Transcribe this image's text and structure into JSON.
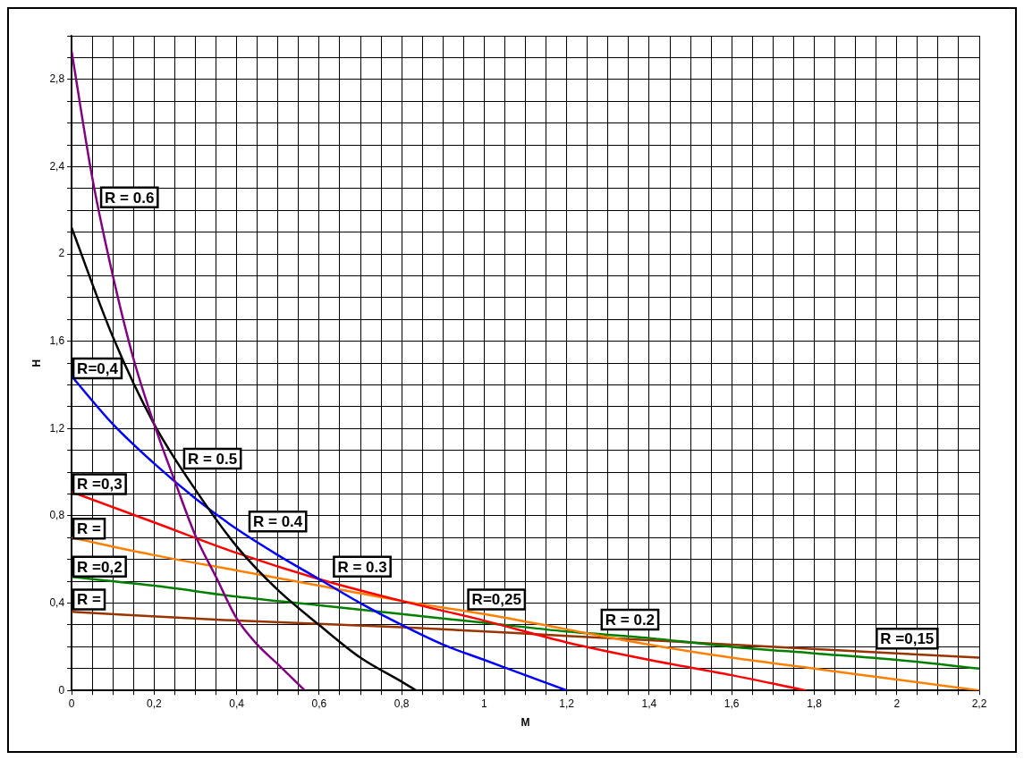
{
  "chart_data": {
    "type": "line",
    "xlabel": "M",
    "ylabel": "H",
    "xlim": [
      0,
      2.2
    ],
    "ylim": [
      0,
      3
    ],
    "xticks": [
      0,
      {
        "value": 0.05,
        "label": null
      },
      {
        "value": 0.1,
        "label": null
      },
      {
        "value": 0.15,
        "label": null
      },
      {
        "value": 0.2,
        "label": "0,2"
      },
      {
        "value": 0.25,
        "label": null
      },
      {
        "value": 0.3,
        "label": null
      },
      {
        "value": 0.35,
        "label": null
      },
      {
        "value": 0.4,
        "label": "0,4"
      },
      {
        "value": 0.45,
        "label": null
      },
      {
        "value": 0.5,
        "label": null
      },
      {
        "value": 0.55,
        "label": null
      },
      {
        "value": 0.6,
        "label": "0,6"
      },
      {
        "value": 0.65,
        "label": null
      },
      {
        "value": 0.7,
        "label": null
      },
      {
        "value": 0.75,
        "label": null
      },
      {
        "value": 0.8,
        "label": "0,8"
      },
      {
        "value": 0.85,
        "label": null
      },
      {
        "value": 0.9,
        "label": null
      },
      {
        "value": 0.95,
        "label": null
      },
      1,
      {
        "value": 1.05,
        "label": null
      },
      {
        "value": 1.1,
        "label": null
      },
      {
        "value": 1.15,
        "label": null
      },
      {
        "value": 1.2,
        "label": "1,2"
      },
      {
        "value": 1.25,
        "label": null
      },
      {
        "value": 1.3,
        "label": null
      },
      {
        "value": 1.35,
        "label": null
      },
      {
        "value": 1.4,
        "label": "1,4"
      },
      {
        "value": 1.45,
        "label": null
      },
      {
        "value": 1.5,
        "label": null
      },
      {
        "value": 1.55,
        "label": null
      },
      {
        "value": 1.6,
        "label": "1,6"
      },
      {
        "value": 1.65,
        "label": null
      },
      {
        "value": 1.7,
        "label": null
      },
      {
        "value": 1.75,
        "label": null
      },
      {
        "value": 1.8,
        "label": "1,8"
      },
      {
        "value": 1.85,
        "label": null
      },
      {
        "value": 1.9,
        "label": null
      },
      {
        "value": 1.95,
        "label": null
      },
      2,
      {
        "value": 2.05,
        "label": null
      },
      {
        "value": 2.1,
        "label": null
      },
      {
        "value": 2.15,
        "label": null
      },
      {
        "value": 2.2,
        "label": "2,2"
      }
    ],
    "yticks": [
      0,
      {
        "value": 0.1,
        "label": null
      },
      {
        "value": 0.2,
        "label": null
      },
      {
        "value": 0.3,
        "label": null
      },
      {
        "value": 0.4,
        "label": "0,4"
      },
      {
        "value": 0.5,
        "label": null
      },
      {
        "value": 0.6,
        "label": null
      },
      {
        "value": 0.7,
        "label": null
      },
      {
        "value": 0.8,
        "label": "0,8"
      },
      {
        "value": 0.9,
        "label": null
      },
      {
        "value": 1.0,
        "label": null
      },
      {
        "value": 1.1,
        "label": null
      },
      {
        "value": 1.2,
        "label": "1,2"
      },
      {
        "value": 1.3,
        "label": null
      },
      {
        "value": 1.4,
        "label": null
      },
      {
        "value": 1.5,
        "label": null
      },
      {
        "value": 1.6,
        "label": "1,6"
      },
      {
        "value": 1.7,
        "label": null
      },
      {
        "value": 1.8,
        "label": null
      },
      {
        "value": 1.9,
        "label": null
      },
      2,
      {
        "value": 2.1,
        "label": null
      },
      {
        "value": 2.2,
        "label": null
      },
      {
        "value": 2.3,
        "label": null
      },
      {
        "value": 2.4,
        "label": "2,4"
      },
      {
        "value": 2.5,
        "label": null
      },
      {
        "value": 2.6,
        "label": null
      },
      {
        "value": 2.7,
        "label": null
      },
      {
        "value": 2.8,
        "label": "2,8"
      },
      {
        "value": 2.9,
        "label": null
      },
      {
        "value": 3.0,
        "label": null
      }
    ],
    "grid": true,
    "legend": false,
    "marker": "none",
    "line_style": "solid",
    "series": [
      {
        "color": "#800080",
        "x": [
          0,
          0.05,
          0.1,
          0.15,
          0.2,
          0.25,
          0.3,
          0.35,
          0.4,
          0.45,
          0.5,
          0.565
        ],
        "values": [
          2.93,
          2.35,
          1.9,
          1.52,
          1.22,
          0.96,
          0.71,
          0.52,
          0.33,
          0.21,
          0.12,
          0
        ]
      },
      {
        "color": "#000000",
        "x": [
          0,
          0.1,
          0.2,
          0.3,
          0.4,
          0.5,
          0.6,
          0.7,
          0.8,
          0.835
        ],
        "values": [
          2.12,
          1.62,
          1.22,
          0.92,
          0.66,
          0.46,
          0.3,
          0.15,
          0.04,
          0
        ]
      },
      {
        "color": "#0000ff",
        "x": [
          0,
          0.1,
          0.2,
          0.3,
          0.4,
          0.5,
          0.6,
          0.7,
          0.8,
          0.9,
          1.0,
          1.1,
          1.2
        ],
        "values": [
          1.44,
          1.22,
          1.04,
          0.88,
          0.74,
          0.62,
          0.51,
          0.4,
          0.3,
          0.21,
          0.14,
          0.07,
          0
        ]
      },
      {
        "color": "#ff0000",
        "x": [
          0,
          0.2,
          0.4,
          0.6,
          0.8,
          1.0,
          1.2,
          1.4,
          1.6,
          1.78
        ],
        "values": [
          0.91,
          0.77,
          0.63,
          0.51,
          0.41,
          0.32,
          0.22,
          0.14,
          0.07,
          0
        ]
      },
      {
        "color": "#ff8000",
        "x": [
          0,
          0.2,
          0.4,
          0.6,
          0.8,
          1.0,
          1.2,
          1.4,
          1.6,
          1.8,
          2.0,
          2.2
        ],
        "values": [
          0.7,
          0.62,
          0.55,
          0.48,
          0.41,
          0.35,
          0.28,
          0.21,
          0.15,
          0.1,
          0.05,
          0
        ]
      },
      {
        "color": "#008000",
        "x": [
          0,
          0.2,
          0.4,
          0.6,
          0.8,
          1.0,
          1.2,
          1.4,
          1.6,
          1.8,
          2.0,
          2.2
        ],
        "values": [
          0.52,
          0.48,
          0.43,
          0.39,
          0.35,
          0.31,
          0.27,
          0.24,
          0.2,
          0.17,
          0.14,
          0.1
        ]
      },
      {
        "color": "#993300",
        "x": [
          0,
          0.4,
          0.8,
          1.2,
          1.6,
          2.0,
          2.2
        ],
        "values": [
          0.36,
          0.32,
          0.29,
          0.25,
          0.21,
          0.17,
          0.15
        ]
      }
    ],
    "annotations": [
      "R = 0.6",
      "R = 0.5",
      "R=0,4",
      "R = 0.4",
      "R = 0.3",
      "R=0,25",
      "R = 0.2",
      "R =0,15",
      "R =0,3",
      "R =",
      "R =0,2",
      "R ="
    ]
  }
}
